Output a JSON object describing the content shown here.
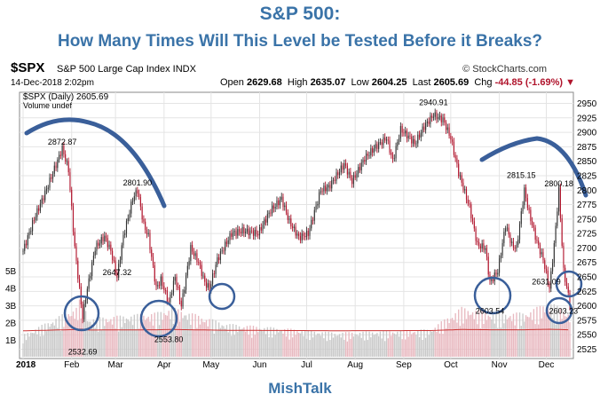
{
  "title": "S&P 500:",
  "subtitle": "How Many Times Will This Level be Tested Before it Breaks?",
  "footer": "MishTalk",
  "header": {
    "symbol": "$SPX",
    "name": "S&P 500 Large Cap Index INDX",
    "date": "14-Dec-2018 2:02pm",
    "source": "© StockCharts.com",
    "open_label": "Open",
    "open": "2629.68",
    "high_label": "High",
    "high": "2635.07",
    "low_label": "Low",
    "low": "2604.25",
    "last_label": "Last",
    "last": "2605.69",
    "chg_label": "Chg",
    "chg": "-44.85 (-1.69%)",
    "legend_price": "$SPX (Daily) 2605.69",
    "legend_volume": "Volume undef"
  },
  "colors": {
    "up": "#333333",
    "down": "#b0142c",
    "annot": "#3a5f9a",
    "title": "#3a73a8"
  },
  "chart_data": {
    "type": "candlestick",
    "ylim": [
      2515,
      2960
    ],
    "yticks": [
      2525,
      2550,
      2575,
      2600,
      2625,
      2650,
      2675,
      2700,
      2725,
      2750,
      2775,
      2800,
      2825,
      2850,
      2875,
      2900,
      2925,
      2950
    ],
    "volume_ticks": [
      "1B",
      "2B",
      "3B",
      "4B",
      "5B"
    ],
    "xlabels": [
      "2018",
      "Feb",
      "Mar",
      "Apr",
      "May",
      "Jun",
      "Jul",
      "Aug",
      "Sep",
      "Oct",
      "Nov",
      "Dec"
    ],
    "x_label_days": [
      0,
      31,
      59,
      90,
      120,
      151,
      181,
      212,
      243,
      273,
      304,
      334
    ],
    "day_range": [
      0,
      349
    ],
    "price_path": [
      [
        0,
        2695
      ],
      [
        7,
        2750
      ],
      [
        14,
        2795
      ],
      [
        25,
        2872
      ],
      [
        29,
        2835
      ],
      [
        33,
        2700
      ],
      [
        38,
        2580
      ],
      [
        40,
        2615
      ],
      [
        46,
        2700
      ],
      [
        52,
        2720
      ],
      [
        56,
        2695
      ],
      [
        60,
        2650
      ],
      [
        64,
        2720
      ],
      [
        70,
        2785
      ],
      [
        73,
        2800
      ],
      [
        77,
        2740
      ],
      [
        80,
        2720
      ],
      [
        85,
        2630
      ],
      [
        88,
        2645
      ],
      [
        93,
        2605
      ],
      [
        97,
        2650
      ],
      [
        101,
        2600
      ],
      [
        107,
        2700
      ],
      [
        112,
        2675
      ],
      [
        116,
        2640
      ],
      [
        119,
        2630
      ],
      [
        124,
        2680
      ],
      [
        133,
        2725
      ],
      [
        140,
        2730
      ],
      [
        150,
        2725
      ],
      [
        158,
        2765
      ],
      [
        165,
        2785
      ],
      [
        170,
        2745
      ],
      [
        176,
        2718
      ],
      [
        182,
        2725
      ],
      [
        190,
        2800
      ],
      [
        195,
        2805
      ],
      [
        205,
        2845
      ],
      [
        210,
        2815
      ],
      [
        218,
        2855
      ],
      [
        225,
        2875
      ],
      [
        232,
        2890
      ],
      [
        236,
        2850
      ],
      [
        241,
        2905
      ],
      [
        247,
        2890
      ],
      [
        250,
        2880
      ],
      [
        256,
        2910
      ],
      [
        262,
        2930
      ],
      [
        268,
        2922
      ],
      [
        273,
        2890
      ],
      [
        278,
        2830
      ],
      [
        285,
        2770
      ],
      [
        290,
        2705
      ],
      [
        295,
        2700
      ],
      [
        298,
        2640
      ],
      [
        303,
        2660
      ],
      [
        308,
        2740
      ],
      [
        312,
        2705
      ],
      [
        315,
        2700
      ],
      [
        318,
        2760
      ],
      [
        320,
        2800
      ],
      [
        323,
        2760
      ],
      [
        328,
        2710
      ],
      [
        332,
        2680
      ],
      [
        336,
        2630
      ],
      [
        339,
        2705
      ],
      [
        342,
        2800
      ],
      [
        345,
        2660
      ],
      [
        349,
        2605
      ]
    ],
    "volume_path": [
      [
        0,
        0.2
      ],
      [
        34,
        0.45
      ],
      [
        37,
        0.55
      ],
      [
        42,
        0.35
      ],
      [
        85,
        0.4
      ],
      [
        95,
        0.45
      ],
      [
        130,
        0.3
      ],
      [
        200,
        0.22
      ],
      [
        260,
        0.25
      ],
      [
        280,
        0.45
      ],
      [
        300,
        0.4
      ],
      [
        320,
        0.4
      ],
      [
        336,
        0.5
      ],
      [
        349,
        0.4
      ]
    ],
    "annotations": [
      {
        "day": 25,
        "value": 2872.87,
        "label": "2872.87"
      },
      {
        "day": 73,
        "value": 2801.9,
        "label": "2801.90"
      },
      {
        "day": 60,
        "value": 2647.32,
        "label": "2647.32"
      },
      {
        "day": 38,
        "value": 2532.69,
        "label": "2532.69"
      },
      {
        "day": 93,
        "value": 2553.8,
        "label": "2553.80"
      },
      {
        "day": 262,
        "value": 2940.91,
        "label": "2940.91"
      },
      {
        "day": 318,
        "value": 2815.15,
        "label": "2815.15"
      },
      {
        "day": 342,
        "value": 2800.18,
        "label": "2800.18"
      },
      {
        "day": 298,
        "value": 2603.54,
        "label": "2603.54"
      },
      {
        "day": 334,
        "value": 2631.09,
        "label": "2631.09"
      },
      {
        "day": 345,
        "value": 2603.23,
        "label": "2603.23"
      }
    ]
  }
}
